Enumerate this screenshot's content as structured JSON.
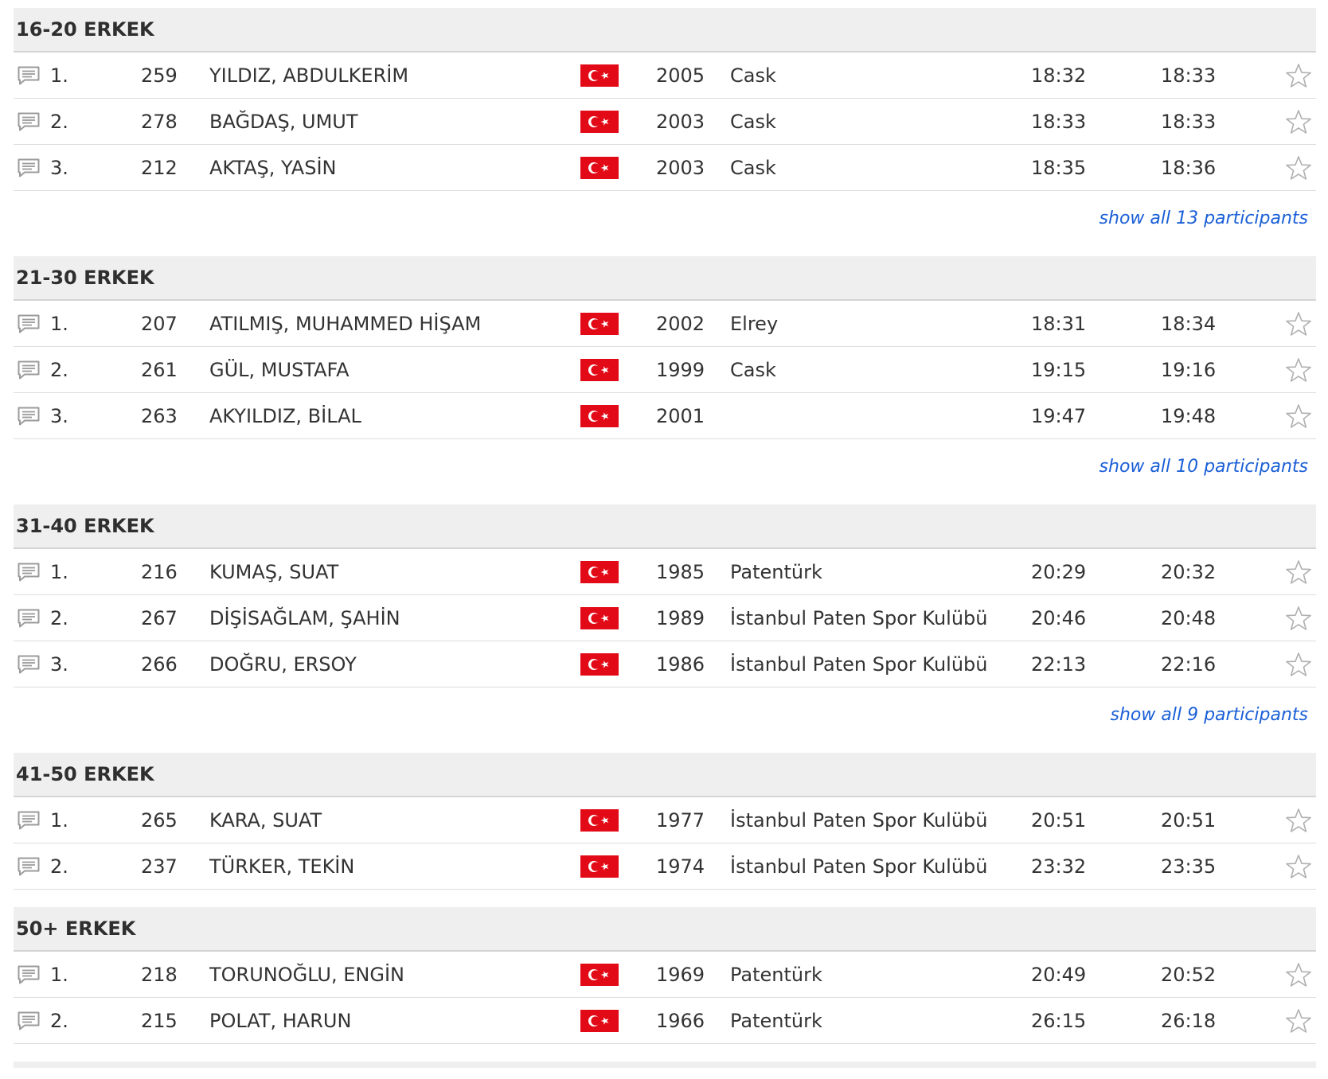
{
  "groups": [
    {
      "title": "16-20 ERKEK",
      "rows": [
        {
          "rank": "1.",
          "bib": "259",
          "name": "YILDIZ, ABDULKERİM",
          "year": "2005",
          "club": "Cask",
          "time1": "18:32",
          "time2": "18:33"
        },
        {
          "rank": "2.",
          "bib": "278",
          "name": "BAĞDAŞ, UMUT",
          "year": "2003",
          "club": "Cask",
          "time1": "18:33",
          "time2": "18:33"
        },
        {
          "rank": "3.",
          "bib": "212",
          "name": "AKTAŞ, YASİN",
          "year": "2003",
          "club": "Cask",
          "time1": "18:35",
          "time2": "18:36"
        }
      ],
      "more_label": "show all 13 participants"
    },
    {
      "title": "21-30 ERKEK",
      "rows": [
        {
          "rank": "1.",
          "bib": "207",
          "name": "ATILMIŞ, MUHAMMED HİŞAM",
          "year": "2002",
          "club": "Elrey",
          "time1": "18:31",
          "time2": "18:34"
        },
        {
          "rank": "2.",
          "bib": "261",
          "name": "GÜL, MUSTAFA",
          "year": "1999",
          "club": "Cask",
          "time1": "19:15",
          "time2": "19:16"
        },
        {
          "rank": "3.",
          "bib": "263",
          "name": "AKYILDIZ, BİLAL",
          "year": "2001",
          "club": "",
          "time1": "19:47",
          "time2": "19:48"
        }
      ],
      "more_label": "show all 10 participants"
    },
    {
      "title": "31-40 ERKEK",
      "rows": [
        {
          "rank": "1.",
          "bib": "216",
          "name": "KUMAŞ, SUAT",
          "year": "1985",
          "club": "Patentürk",
          "time1": "20:29",
          "time2": "20:32"
        },
        {
          "rank": "2.",
          "bib": "267",
          "name": "DİŞİSAĞLAM, ŞAHİN",
          "year": "1989",
          "club": "İstanbul Paten Spor Kulübü",
          "time1": "20:46",
          "time2": "20:48"
        },
        {
          "rank": "3.",
          "bib": "266",
          "name": "DOĞRU, ERSOY",
          "year": "1986",
          "club": "İstanbul Paten Spor Kulübü",
          "time1": "22:13",
          "time2": "22:16"
        }
      ],
      "more_label": "show all 9 participants"
    },
    {
      "title": "41-50 ERKEK",
      "rows": [
        {
          "rank": "1.",
          "bib": "265",
          "name": "KARA, SUAT",
          "year": "1977",
          "club": "İstanbul Paten Spor Kulübü",
          "time1": "20:51",
          "time2": "20:51"
        },
        {
          "rank": "2.",
          "bib": "237",
          "name": "TÜRKER, TEKİN",
          "year": "1974",
          "club": "İstanbul Paten Spor Kulübü",
          "time1": "23:32",
          "time2": "23:35"
        }
      ],
      "more_label": ""
    },
    {
      "title": "50+ ERKEK",
      "rows": [
        {
          "rank": "1.",
          "bib": "218",
          "name": "TORUNOĞLU, ENGİN",
          "year": "1969",
          "club": "Patentürk",
          "time1": "20:49",
          "time2": "20:52"
        },
        {
          "rank": "2.",
          "bib": "215",
          "name": "POLAT, HARUN",
          "year": "1966",
          "club": "Patentürk",
          "time1": "26:15",
          "time2": "26:18"
        }
      ],
      "more_label": ""
    }
  ],
  "icons": {
    "message": "comment-icon",
    "flag": "turkey-flag-icon",
    "star": "star-outline-icon"
  },
  "colors": {
    "header_bg": "#efefef",
    "link": "#1a5fd6",
    "flag_red": "#e30a17",
    "icon_gray": "#9b9b9b"
  }
}
